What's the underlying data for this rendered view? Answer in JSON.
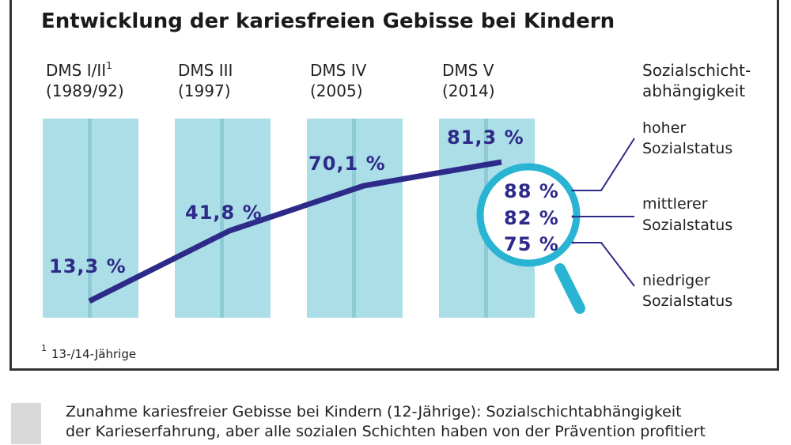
{
  "title": "Entwicklung der kariesfreien Gebisse bei Kindern",
  "footnote": {
    "mark": "1",
    "text": "13-/14-Jährige"
  },
  "caption": {
    "line1": "Zunahme kariesfreier Gebisse bei Kindern (12-Jährige): Sozialschichtabhängigkeit",
    "line2": "der Karieserfahrung, aber alle sozialen Schichten haben von der Prävention profitiert"
  },
  "colors": {
    "bar": "#acdee8",
    "bar_stripe": "#8fcbd6",
    "line": "#2e2a8a",
    "label": "#2e2a8a",
    "lens": "#29b4d4"
  },
  "chart_data": {
    "type": "line",
    "categories": [
      {
        "name": "DMS I/II",
        "sup": "1",
        "year": "(1989/92)"
      },
      {
        "name": "DMS III",
        "sup": "",
        "year": "(1997)"
      },
      {
        "name": "DMS IV",
        "sup": "",
        "year": "(2005)"
      },
      {
        "name": "DMS V",
        "sup": "",
        "year": "(2014)"
      }
    ],
    "values": [
      13.3,
      41.8,
      70.1,
      81.3
    ],
    "value_labels": [
      "13,3 %",
      "41,8 %",
      "70,1 %",
      "81,3 %"
    ],
    "ylim": [
      0,
      100
    ],
    "social": {
      "header": [
        "Sozialschicht-",
        "abhängigkeit"
      ],
      "groups": [
        {
          "value": 88,
          "value_label": "88 %",
          "label": [
            "hoher",
            "Sozialstatus"
          ]
        },
        {
          "value": 82,
          "value_label": "82 %",
          "label": [
            "mittlerer",
            "Sozialstatus"
          ]
        },
        {
          "value": 75,
          "value_label": "75 %",
          "label": [
            "niedriger",
            "Sozialstatus"
          ]
        }
      ]
    }
  }
}
